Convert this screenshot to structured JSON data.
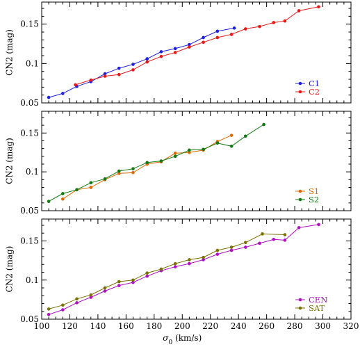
{
  "chart_data": [
    {
      "type": "line",
      "ylabel": "CN2 (mag)",
      "xlim": [
        100,
        320
      ],
      "ylim": [
        0.05,
        0.178
      ],
      "yticks": [
        0.05,
        0.1,
        0.15
      ],
      "ytick_labels": [
        "0.05",
        "0.1",
        "0.15"
      ],
      "legend_placement": "bottom-right",
      "series": [
        {
          "name": "C1",
          "color": "#1f1fe0",
          "x": [
            105,
            115,
            125,
            135,
            145,
            155,
            165,
            175,
            185,
            195,
            205,
            215,
            225,
            237
          ],
          "y": [
            0.057,
            0.062,
            0.071,
            0.077,
            0.087,
            0.094,
            0.099,
            0.106,
            0.115,
            0.119,
            0.124,
            0.133,
            0.141,
            0.145
          ]
        },
        {
          "name": "C2",
          "color": "#e61919",
          "x": [
            124,
            135,
            145,
            155,
            165,
            175,
            185,
            195,
            205,
            215,
            225,
            235,
            245,
            255,
            265,
            273,
            283,
            297
          ],
          "y": [
            0.073,
            0.079,
            0.084,
            0.086,
            0.092,
            0.102,
            0.109,
            0.114,
            0.121,
            0.127,
            0.133,
            0.137,
            0.144,
            0.147,
            0.152,
            0.154,
            0.167,
            0.172
          ]
        }
      ]
    },
    {
      "type": "line",
      "ylabel": "CN2 (mag)",
      "xlim": [
        100,
        320
      ],
      "ylim": [
        0.05,
        0.178
      ],
      "yticks": [
        0.05,
        0.1,
        0.15
      ],
      "ytick_labels": [
        "0.05",
        "0.1",
        "0.15"
      ],
      "legend_placement": "bottom-right",
      "series": [
        {
          "name": "S1",
          "color": "#d96a00",
          "x": [
            115,
            125,
            135,
            145,
            155,
            165,
            175,
            185,
            195,
            205,
            215,
            225,
            235
          ],
          "y": [
            0.065,
            0.077,
            0.08,
            0.09,
            0.098,
            0.099,
            0.11,
            0.113,
            0.124,
            0.125,
            0.128,
            0.139,
            0.147
          ]
        },
        {
          "name": "S2",
          "color": "#117a11",
          "x": [
            105,
            115,
            125,
            135,
            145,
            155,
            165,
            175,
            185,
            195,
            205,
            215,
            225,
            235,
            245,
            258
          ],
          "y": [
            0.062,
            0.072,
            0.077,
            0.086,
            0.091,
            0.101,
            0.104,
            0.112,
            0.114,
            0.12,
            0.128,
            0.129,
            0.137,
            0.133,
            0.146,
            0.161
          ]
        }
      ]
    },
    {
      "type": "line",
      "xlabel": "σ0 (km/s)",
      "ylabel": "CN2 (mag)",
      "xlim": [
        100,
        320
      ],
      "ylim": [
        0.05,
        0.178
      ],
      "xticks": [
        100,
        120,
        140,
        160,
        180,
        200,
        220,
        240,
        260,
        280,
        300,
        320
      ],
      "xtick_labels": [
        "100",
        "120",
        "140",
        "160",
        "180",
        "200",
        "220",
        "240",
        "260",
        "280",
        "300",
        "320"
      ],
      "yticks": [
        0.05,
        0.1,
        0.15
      ],
      "ytick_labels": [
        "0.05",
        "0.1",
        "0.15"
      ],
      "legend_placement": "bottom-right",
      "series": [
        {
          "name": "CEN",
          "color": "#b010c0",
          "x": [
            105,
            115,
            125,
            135,
            145,
            155,
            165,
            175,
            185,
            195,
            205,
            215,
            225,
            235,
            245,
            255,
            265,
            273,
            283,
            297
          ],
          "y": [
            0.056,
            0.062,
            0.071,
            0.078,
            0.086,
            0.093,
            0.097,
            0.105,
            0.112,
            0.117,
            0.121,
            0.126,
            0.133,
            0.138,
            0.142,
            0.147,
            0.152,
            0.151,
            0.167,
            0.171
          ]
        },
        {
          "name": "SAT",
          "color": "#7a7000",
          "x": [
            105,
            115,
            125,
            135,
            145,
            155,
            165,
            175,
            185,
            195,
            205,
            215,
            225,
            235,
            245,
            257,
            273
          ],
          "y": [
            0.063,
            0.068,
            0.076,
            0.081,
            0.09,
            0.098,
            0.1,
            0.109,
            0.114,
            0.121,
            0.126,
            0.129,
            0.138,
            0.142,
            0.148,
            0.159,
            0.158
          ]
        }
      ]
    }
  ]
}
